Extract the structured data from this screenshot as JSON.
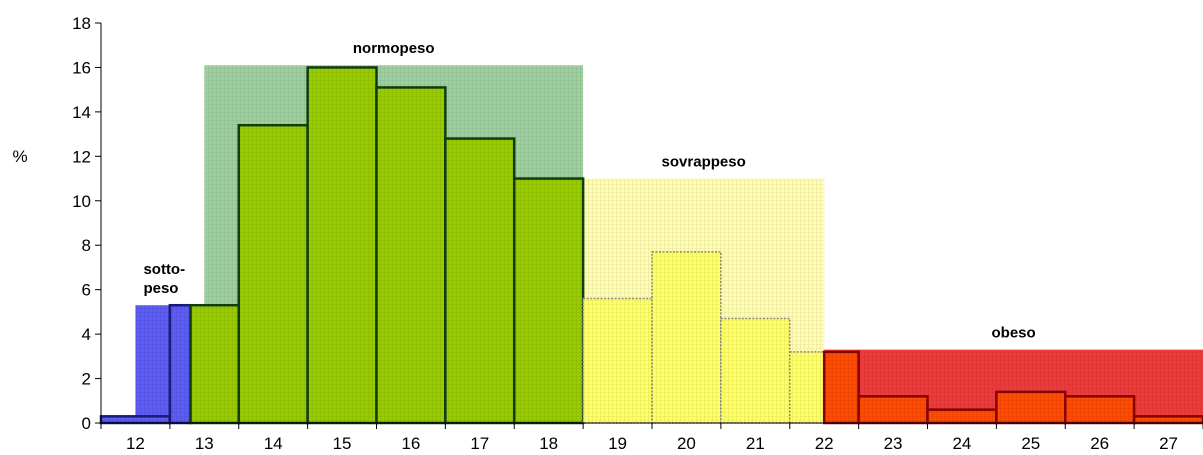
{
  "chart_data": {
    "type": "bar",
    "ylabel": "%",
    "ylim": [
      0,
      18
    ],
    "yticks": [
      0,
      2,
      4,
      6,
      8,
      10,
      12,
      14,
      16,
      18
    ],
    "x_tick_labels": [
      "12",
      "13",
      "14",
      "15",
      "16",
      "17",
      "18",
      "19",
      "20",
      "21",
      "22",
      "23",
      "24",
      "25",
      "26",
      "27"
    ],
    "colors": {
      "sottopeso_bg": "#5b5bf5",
      "normopeso_bg": "#9ecf9e",
      "sovrappeso_bg": "#fffdb0",
      "obeso_bg": "#f03a3a",
      "sottopeso_bar": "#5b5bf5",
      "normopeso_bar": "#99cc00",
      "sovrappeso_bar": "#ffff66",
      "obeso_bar": "#ff4a00"
    },
    "regions": [
      {
        "label_lines": [
          "sotto-",
          "peso"
        ],
        "from": 12,
        "to": 13,
        "value": 5.3,
        "class": "sottopeso"
      },
      {
        "label_lines": [
          "normopeso"
        ],
        "from": 13,
        "to": 18.5,
        "value": 16.1,
        "class": "normopeso"
      },
      {
        "label_lines": [
          "sovrappeso"
        ],
        "from": 18.5,
        "to": 22,
        "value": 11.0,
        "class": "sovrappeso"
      },
      {
        "label_lines": [
          "obeso"
        ],
        "from": 22,
        "to": 27.5,
        "value": 3.3,
        "class": "obeso"
      }
    ],
    "bars": [
      {
        "from": 11.5,
        "to": 12.5,
        "value": 0.3,
        "class": "sottopeso"
      },
      {
        "from": 12.5,
        "to": 12.8,
        "value": 5.3,
        "class": "sottopeso"
      },
      {
        "from": 12.8,
        "to": 13.5,
        "value": 5.3,
        "class": "normopeso"
      },
      {
        "from": 13.5,
        "to": 14.5,
        "value": 13.4,
        "class": "normopeso"
      },
      {
        "from": 14.5,
        "to": 15.5,
        "value": 16.0,
        "class": "normopeso"
      },
      {
        "from": 15.5,
        "to": 16.5,
        "value": 15.1,
        "class": "normopeso"
      },
      {
        "from": 16.5,
        "to": 17.5,
        "value": 12.8,
        "class": "normopeso"
      },
      {
        "from": 17.5,
        "to": 18.5,
        "value": 11.0,
        "class": "normopeso"
      },
      {
        "from": 18.5,
        "to": 19.5,
        "value": 5.6,
        "class": "sovrappeso"
      },
      {
        "from": 19.5,
        "to": 20.5,
        "value": 7.7,
        "class": "sovrappeso"
      },
      {
        "from": 20.5,
        "to": 21.5,
        "value": 4.7,
        "class": "sovrappeso"
      },
      {
        "from": 21.5,
        "to": 22.0,
        "value": 3.2,
        "class": "sovrappeso"
      },
      {
        "from": 22.0,
        "to": 22.5,
        "value": 3.2,
        "class": "obeso"
      },
      {
        "from": 22.5,
        "to": 23.5,
        "value": 1.2,
        "class": "obeso"
      },
      {
        "from": 23.5,
        "to": 24.5,
        "value": 0.6,
        "class": "obeso"
      },
      {
        "from": 24.5,
        "to": 25.5,
        "value": 1.4,
        "class": "obeso"
      },
      {
        "from": 25.5,
        "to": 26.5,
        "value": 1.2,
        "class": "obeso"
      },
      {
        "from": 26.5,
        "to": 27.5,
        "value": 0.3,
        "class": "obeso"
      }
    ]
  }
}
